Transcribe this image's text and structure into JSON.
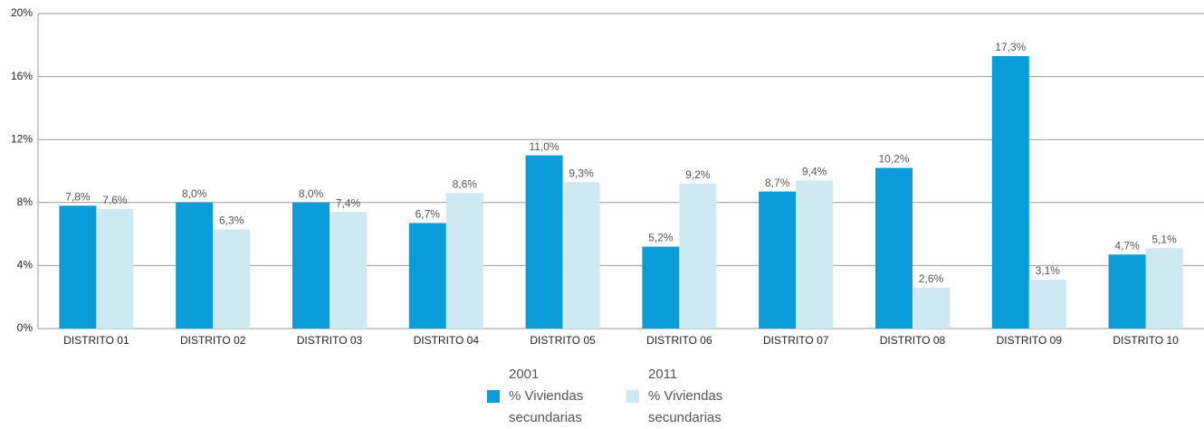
{
  "chart_data": {
    "type": "bar",
    "categories": [
      "DISTRITO 01",
      "DISTRITO 02",
      "DISTRITO 03",
      "DISTRITO 04",
      "DISTRITO 05",
      "DISTRITO 06",
      "DISTRITO 07",
      "DISTRITO 08",
      "DISTRITO 09",
      "DISTRITO 10"
    ],
    "series": [
      {
        "name": "2001\n% Viviendas\nsecundarias",
        "color": "#0a9bd9",
        "values": [
          7.8,
          8.0,
          8.0,
          6.7,
          11.0,
          5.2,
          8.7,
          10.2,
          17.3,
          4.7
        ],
        "value_labels": [
          "7,8%",
          "8,0%",
          "8,0%",
          "6,7%",
          "11,0%",
          "5,2%",
          "8,7%",
          "10,2%",
          "17,3%",
          "4,7%"
        ]
      },
      {
        "name": "2011\n% Viviendas\nsecundarias",
        "color": "#cfe9f3",
        "values": [
          7.6,
          6.3,
          7.4,
          8.6,
          9.3,
          9.2,
          9.4,
          2.6,
          3.1,
          5.1
        ],
        "value_labels": [
          "7,6%",
          "6,3%",
          "7,4%",
          "8,6%",
          "9,3%",
          "9,2%",
          "9,4%",
          "2,6%",
          "3,1%",
          "5,1%"
        ]
      }
    ],
    "ylim": [
      0,
      20
    ],
    "yticks": [
      {
        "value": 0,
        "label": "0%"
      },
      {
        "value": 4,
        "label": "4%"
      },
      {
        "value": 8,
        "label": "8%"
      },
      {
        "value": 12,
        "label": "12%"
      },
      {
        "value": 16,
        "label": "16%"
      },
      {
        "value": 20,
        "label": "20%"
      }
    ],
    "grid": true,
    "legend": "bottom"
  }
}
